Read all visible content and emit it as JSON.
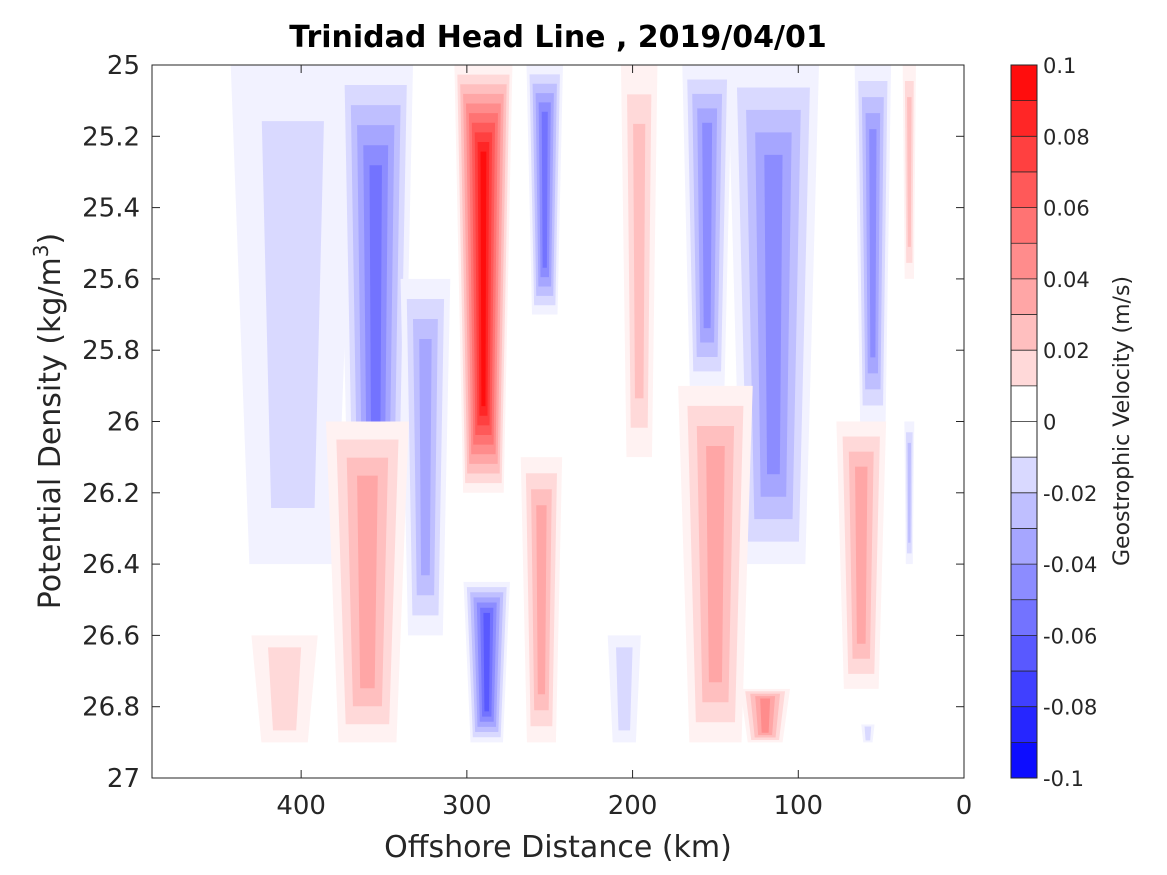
{
  "chart_data": {
    "type": "heatmap",
    "title": "Trinidad Head Line , 2019/04/01",
    "xlabel": "Offshore Distance (km)",
    "ylabel_main": "Potential Density (kg/m",
    "ylabel_sup": "3",
    "ylabel_close": ")",
    "colorbar_label": "Geostrophic Velocity (m/s)",
    "x_reversed": true,
    "xlim": [
      0,
      490
    ],
    "ylim": [
      25,
      27
    ],
    "y_reversed": true,
    "x_ticks": [
      400,
      300,
      200,
      100,
      0
    ],
    "x_tick_labels": [
      "400",
      "300",
      "200",
      "100",
      "0"
    ],
    "y_ticks": [
      25,
      25.2,
      25.4,
      25.6,
      25.8,
      26,
      26.2,
      26.4,
      26.6,
      26.8,
      27
    ],
    "y_tick_labels": [
      "25",
      "25.2",
      "25.4",
      "25.6",
      "25.8",
      "26",
      "26.2",
      "26.4",
      "26.6",
      "26.8",
      "27"
    ],
    "colorbar_ticks": [
      0.1,
      0.08,
      0.06,
      0.04,
      0.02,
      0,
      -0.02,
      -0.04,
      -0.06,
      -0.08,
      -0.1
    ],
    "colorbar_tick_labels": [
      "0.1",
      "0.08",
      "0.06",
      "0.04",
      "0.02",
      "0",
      "-0.02",
      "-0.04",
      "-0.06",
      "-0.08",
      "-0.1"
    ],
    "colorbar_levels": [
      0.1,
      0.09,
      0.08,
      0.07,
      0.06,
      0.05,
      0.04,
      0.03,
      0.02,
      0.01,
      0,
      -0.01,
      -0.02,
      -0.03,
      -0.04,
      -0.05,
      -0.06,
      -0.07,
      -0.08,
      -0.09
    ],
    "features": [
      {
        "name": "blue-band-440",
        "x_center": 405,
        "y_top": 25.0,
        "y_bottom": 26.4,
        "width": 75,
        "peak": -0.02
      },
      {
        "name": "blue-core-355",
        "x_center": 355,
        "y_top": 25.0,
        "y_bottom": 26.5,
        "width": 45,
        "peak": -0.06
      },
      {
        "name": "blue-lower-330",
        "x_center": 325,
        "y_top": 25.6,
        "y_bottom": 26.6,
        "width": 30,
        "peak": -0.04
      },
      {
        "name": "red-jet-290",
        "x_center": 290,
        "y_top": 25.0,
        "y_bottom": 26.2,
        "width": 35,
        "peak": 0.1
      },
      {
        "name": "blue-core-255",
        "x_center": 253,
        "y_top": 25.0,
        "y_bottom": 25.7,
        "width": 22,
        "peak": -0.06
      },
      {
        "name": "red-band-200",
        "x_center": 196,
        "y_top": 25.0,
        "y_bottom": 26.1,
        "width": 22,
        "peak": 0.03
      },
      {
        "name": "blue-core-115",
        "x_center": 115,
        "y_top": 25.0,
        "y_bottom": 26.4,
        "width": 55,
        "peak": -0.05
      },
      {
        "name": "blue-core-155",
        "x_center": 155,
        "y_top": 25.0,
        "y_bottom": 25.9,
        "width": 30,
        "peak": -0.05
      },
      {
        "name": "blue-core-55",
        "x_center": 55,
        "y_top": 25.0,
        "y_bottom": 26.0,
        "width": 22,
        "peak": -0.05
      },
      {
        "name": "red-strip-35",
        "x_center": 33,
        "y_top": 25.0,
        "y_bottom": 25.6,
        "width": 8,
        "peak": 0.03
      },
      {
        "name": "red-band-360",
        "x_center": 360,
        "y_top": 26.0,
        "y_bottom": 26.9,
        "width": 50,
        "peak": 0.04
      },
      {
        "name": "red-lower-420",
        "x_center": 410,
        "y_top": 26.6,
        "y_bottom": 26.9,
        "width": 40,
        "peak": 0.02
      },
      {
        "name": "blue-deep-290",
        "x_center": 288,
        "y_top": 26.45,
        "y_bottom": 26.9,
        "width": 28,
        "peak": -0.07
      },
      {
        "name": "red-band-255",
        "x_center": 255,
        "y_top": 26.1,
        "y_bottom": 26.9,
        "width": 25,
        "peak": 0.04
      },
      {
        "name": "red-band-150",
        "x_center": 150,
        "y_top": 25.9,
        "y_bottom": 26.9,
        "width": 45,
        "peak": 0.04
      },
      {
        "name": "red-deep-120",
        "x_center": 120,
        "y_top": 26.75,
        "y_bottom": 26.9,
        "width": 30,
        "peak": 0.05
      },
      {
        "name": "red-band-65",
        "x_center": 62,
        "y_top": 26.0,
        "y_bottom": 26.75,
        "width": 30,
        "peak": 0.04
      },
      {
        "name": "blue-deep-200",
        "x_center": 205,
        "y_top": 26.6,
        "y_bottom": 26.9,
        "width": 20,
        "peak": -0.02
      },
      {
        "name": "blue-strip-33",
        "x_center": 33,
        "y_top": 26.0,
        "y_bottom": 26.4,
        "width": 6,
        "peak": -0.03
      },
      {
        "name": "blue-deep-58",
        "x_center": 58,
        "y_top": 26.85,
        "y_bottom": 26.9,
        "width": 8,
        "peak": -0.02
      }
    ]
  }
}
